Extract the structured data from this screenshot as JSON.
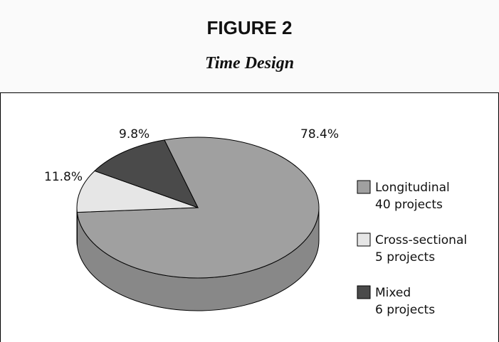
{
  "header": {
    "figure_label": "FIGURE 2",
    "figure_title": "Time Design"
  },
  "chart_data": {
    "type": "pie",
    "title": "Time Design",
    "style": "3d",
    "slices": [
      {
        "name": "Longitudinal",
        "value": 78.4,
        "count": 40,
        "label": "78.4%",
        "detail": "40 projects",
        "color": "#a0a0a0"
      },
      {
        "name": "Cross-sectional",
        "value": 9.8,
        "count": 5,
        "label": "9.8%",
        "detail": "5 projects",
        "color": "#e6e6e6"
      },
      {
        "name": "Mixed",
        "value": 11.8,
        "count": 6,
        "label": "11.8%",
        "detail": "6 projects",
        "color": "#4a4a4a"
      }
    ],
    "legend_position": "right"
  }
}
